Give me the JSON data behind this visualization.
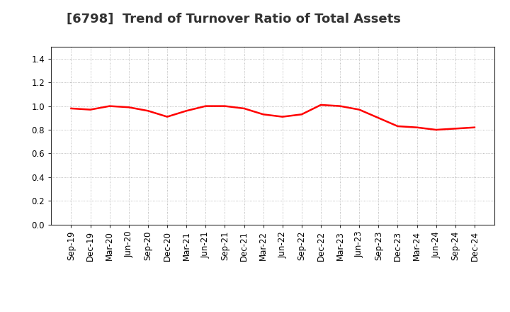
{
  "title": "[6798]  Trend of Turnover Ratio of Total Assets",
  "x_labels": [
    "Sep-19",
    "Dec-19",
    "Mar-20",
    "Jun-20",
    "Sep-20",
    "Dec-20",
    "Mar-21",
    "Jun-21",
    "Sep-21",
    "Dec-21",
    "Mar-22",
    "Jun-22",
    "Sep-22",
    "Dec-22",
    "Mar-23",
    "Jun-23",
    "Sep-23",
    "Dec-23",
    "Mar-24",
    "Jun-24",
    "Sep-24",
    "Dec-24"
  ],
  "y_values": [
    0.98,
    0.97,
    1.0,
    0.99,
    0.96,
    0.91,
    0.96,
    1.0,
    1.0,
    0.98,
    0.93,
    0.91,
    0.93,
    1.01,
    1.0,
    0.97,
    0.9,
    0.83,
    0.82,
    0.8,
    0.81,
    0.82
  ],
  "line_color": "#FF0000",
  "line_width": 1.8,
  "ylim": [
    0.0,
    1.5
  ],
  "yticks": [
    0.0,
    0.2,
    0.4,
    0.6,
    0.8,
    1.0,
    1.2,
    1.4
  ],
  "background_color": "#ffffff",
  "grid_color": "#aaaaaa",
  "title_fontsize": 13,
  "tick_fontsize": 8.5,
  "title_color": "#333333"
}
